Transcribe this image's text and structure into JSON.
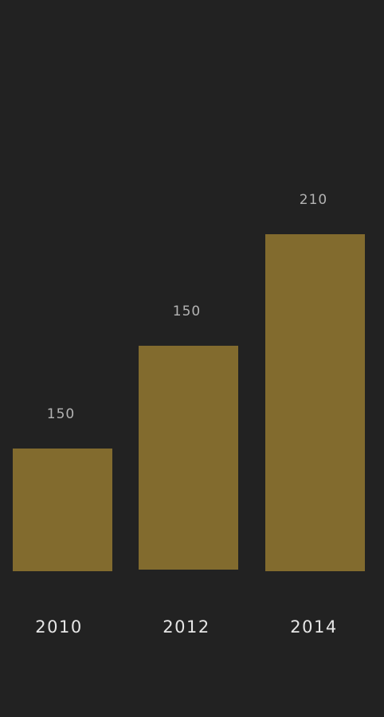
{
  "colors": {
    "background": "#222222",
    "bar": "#826b2e",
    "value_label": "#b3b3b3",
    "category_label": "#e6e6e6"
  },
  "chart_data": {
    "type": "bar",
    "title": "",
    "xlabel": "",
    "ylabel": "",
    "categories": [
      "2010",
      "2012",
      "2014"
    ],
    "values": [
      150,
      150,
      210
    ],
    "data_labels": [
      "150",
      "150",
      "210"
    ],
    "grid": false,
    "legend": "none"
  }
}
